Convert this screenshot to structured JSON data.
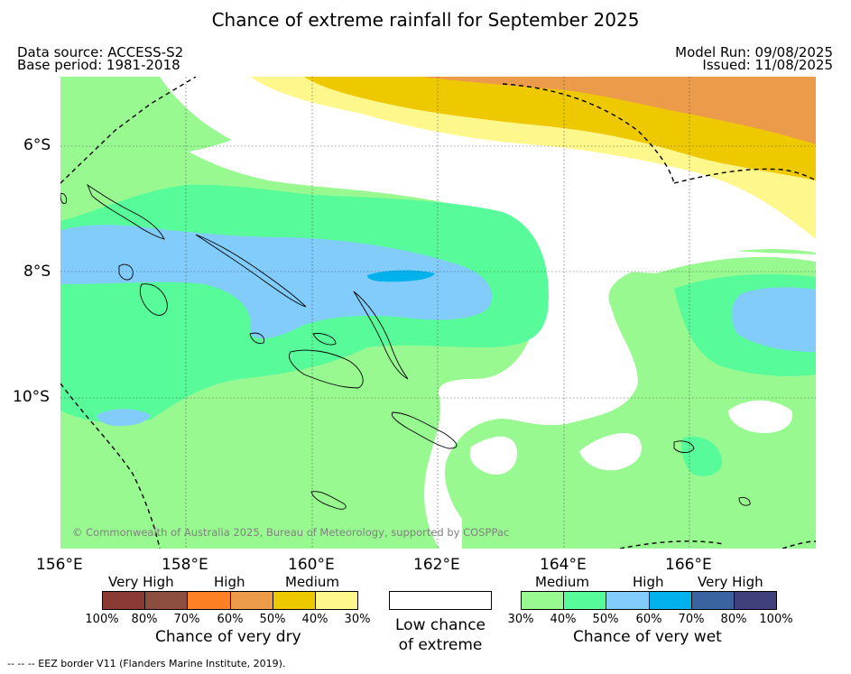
{
  "title": "Chance of extreme rainfall for September 2025",
  "meta": {
    "data_source": "Data source: ACCESS-S2",
    "base_period": "Base period: 1981-2018",
    "model_run": "Model Run: 09/08/2025",
    "issued": "Issued: 11/08/2025"
  },
  "axes": {
    "lat_labels": [
      "6°S",
      "8°S",
      "10°S"
    ],
    "lon_labels": [
      "156°E",
      "158°E",
      "160°E",
      "162°E",
      "164°E",
      "166°E"
    ]
  },
  "copyright": "© Commonwealth of Australia 2025, Bureau of Meteorology, supported by COSPPac",
  "legend": {
    "dry": {
      "caption": "Chance of very dry",
      "categories": [
        "Very High",
        "High",
        "Medium"
      ],
      "ticks": [
        "100%",
        "80%",
        "70%",
        "60%",
        "50%",
        "40%",
        "30%"
      ],
      "colors": [
        "#8b3a33",
        "#8c4f3f",
        "#fd8024",
        "#ec9b4b",
        "#efc900",
        "#fef78b"
      ]
    },
    "low": {
      "caption": "Low chance of extreme",
      "color": "#ffffff"
    },
    "wet": {
      "caption": "Chance of very wet",
      "categories": [
        "Medium",
        "High",
        "Very High"
      ],
      "ticks": [
        "30%",
        "40%",
        "50%",
        "60%",
        "70%",
        "80%",
        "100%"
      ],
      "colors": [
        "#99f991",
        "#58fb9a",
        "#81ccfb",
        "#00b1ec",
        "#3964a0",
        "#3f3f7b"
      ]
    }
  },
  "footnote": "-- -- -- EEZ border V11 (Flanders Marine Institute, 2019)."
}
